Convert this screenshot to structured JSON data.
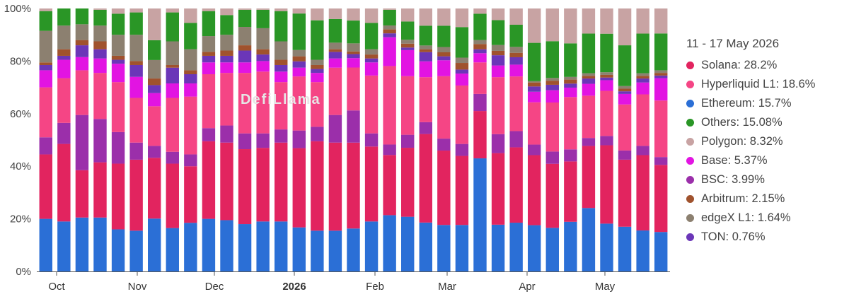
{
  "chart_data": {
    "type": "bar",
    "stacked": true,
    "normalized": true,
    "x_ticks": [
      "Oct",
      "Nov",
      "Dec",
      "2026",
      "Feb",
      "Mar",
      "Apr",
      "May"
    ],
    "y_ticks": [
      "0%",
      "20%",
      "40%",
      "60%",
      "80%",
      "100%"
    ],
    "ylim": [
      0,
      100
    ],
    "grid": false,
    "legend_position": "right",
    "legend_title": "11 - 17 May 2026",
    "series": [
      {
        "name": "Ethereum",
        "legend_label": "Ethereum: 15.7%",
        "color": "#2b6fd6",
        "values": [
          20,
          19,
          20.5,
          20.5,
          16,
          15.5,
          20,
          16.5,
          18.5,
          20,
          19.5,
          18,
          19,
          19,
          17.5,
          15.5,
          15.5,
          16,
          19,
          21.5,
          21,
          18.5,
          17.5,
          17.5,
          43,
          16,
          16.5,
          17.5,
          16,
          18.5,
          24,
          18,
          17,
          15.5,
          15
        ]
      },
      {
        "name": "Solana",
        "legend_label": "Solana: 28.2%",
        "color": "#e2245f",
        "values": [
          24.5,
          29.5,
          18,
          21,
          25,
          27,
          23,
          24.5,
          21.5,
          29.5,
          29.5,
          28.5,
          28,
          30,
          31.5,
          34,
          33.5,
          32,
          28.5,
          23,
          26.5,
          33.5,
          28,
          26,
          18,
          24.5,
          25.5,
          26.5,
          23.5,
          22.5,
          23.5,
          29.5,
          25.5,
          28.5,
          25.5
        ]
      },
      {
        "name": "BSC",
        "legend_label": "BSC: 3.99%",
        "color": "#9b2faa",
        "values": [
          6.5,
          8,
          21,
          16.5,
          12,
          6.5,
          4.5,
          4.5,
          4.5,
          5,
          6.5,
          6,
          5.5,
          5,
          7,
          5.5,
          10.5,
          12,
          5,
          4,
          5,
          4.5,
          4.5,
          4.5,
          6.5,
          6.5,
          5.5,
          4,
          4.5,
          4.5,
          3,
          3.5,
          3.5,
          3.5,
          3
        ]
      },
      {
        "name": "Hyperliquid L1",
        "legend_label": "Hyperliquid L1: 18.6%",
        "color": "#f54585",
        "values": [
          19,
          17,
          17,
          17.5,
          19,
          17,
          15,
          20.5,
          22,
          20.5,
          20,
          23,
          23.5,
          18,
          21.5,
          17,
          18,
          16,
          22,
          30,
          22.5,
          17,
          23.5,
          22,
          12,
          19.5,
          18.5,
          16,
          18,
          19.5,
          16,
          17,
          17.5,
          19.5,
          21.5
        ]
      },
      {
        "name": "Base",
        "legend_label": "Base: 5.37%",
        "color": "#e214e2",
        "values": [
          6.5,
          7,
          5,
          5.5,
          7,
          8,
          5,
          5.5,
          5,
          4.5,
          4,
          4,
          4,
          4,
          3.5,
          3.5,
          3.5,
          3.5,
          5,
          11,
          10,
          6,
          6,
          4.5,
          3.5,
          4,
          4,
          4,
          4.5,
          3.5,
          4.5,
          4,
          4,
          4.5,
          8.5
        ]
      },
      {
        "name": "TON",
        "legend_label": "TON: 0.76%",
        "color": "#6b36b8",
        "values": [
          2,
          1.5,
          4.5,
          3.5,
          1.5,
          4.5,
          3,
          6,
          3.5,
          2.5,
          2.5,
          4.5,
          2.5,
          2.5,
          2.5,
          1.5,
          2.5,
          1.5,
          1.5,
          1.5,
          1,
          3.5,
          1.5,
          1.5,
          1.5,
          3.5,
          2.5,
          2,
          2,
          1.5,
          2,
          1,
          1,
          1.5,
          1
        ]
      },
      {
        "name": "Arbitrum",
        "legend_label": "Arbitrum: 2.15%",
        "color": "#a0522d",
        "values": [
          1,
          2.5,
          2,
          3,
          1.5,
          1.5,
          2.5,
          1,
          1.5,
          1.5,
          2,
          2,
          2,
          2,
          2,
          1.5,
          1,
          1,
          1.5,
          1.5,
          1.5,
          1,
          1.5,
          2.5,
          2,
          1.5,
          1.5,
          1.5,
          1.5,
          1.5,
          1,
          1,
          1,
          1,
          1
        ]
      },
      {
        "name": "edgeX L1",
        "legend_label": "edgeX L1: 1.64%",
        "color": "#8c8070",
        "values": [
          12,
          9,
          6,
          6,
          8,
          10,
          7,
          9,
          8,
          6,
          6,
          7,
          8,
          7,
          2.5,
          2,
          2.5,
          3,
          2,
          1.5,
          1.5,
          1.5,
          2,
          2,
          1.5,
          2,
          2,
          0.5,
          1,
          1,
          1,
          1,
          1,
          1,
          1
        ]
      },
      {
        "name": "Others",
        "legend_label": "Others: 15.08%",
        "color": "#2a9626",
        "values": [
          7.5,
          6.5,
          6,
          6,
          8,
          8.5,
          7.5,
          11,
          10,
          9.5,
          7.5,
          6.5,
          7,
          11.5,
          14.5,
          15,
          9,
          8.5,
          10,
          6,
          7,
          7.5,
          8,
          11.5,
          10,
          8.5,
          7.5,
          14.5,
          13.5,
          12.5,
          15,
          14.5,
          15.5,
          15,
          14
        ]
      },
      {
        "name": "Polygon",
        "legend_label": "Polygon: 8.32%",
        "color": "#c8a3a3",
        "values": [
          1,
          0,
          0,
          0.5,
          2,
          1.5,
          12,
          1.5,
          5.5,
          1,
          2.5,
          0.5,
          0.5,
          1,
          2,
          4.5,
          4,
          4.5,
          5.5,
          0.5,
          5,
          6.5,
          6.5,
          7,
          2,
          4,
          5.5,
          13,
          12,
          13,
          9.5,
          9.5,
          14,
          9.5,
          9.5
        ]
      }
    ]
  }
}
